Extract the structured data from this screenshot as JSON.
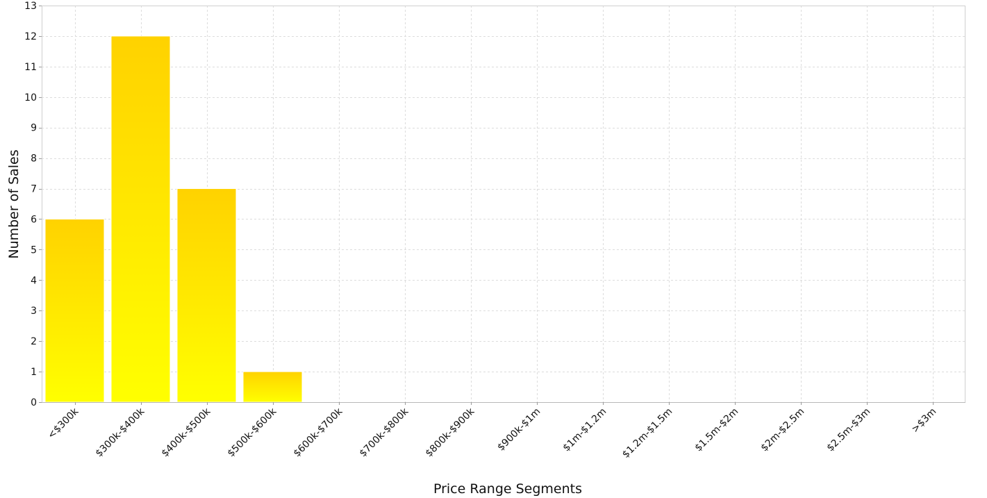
{
  "chart_data": {
    "type": "bar",
    "title": "",
    "xlabel": "Price Range Segments",
    "ylabel": "Number of Sales",
    "categories": [
      "<$300k",
      "$300k-$400k",
      "$400k-$500k",
      "$500k-$600k",
      "$600k-$700k",
      "$700k-$800k",
      "$800k-$900k",
      "$900k-$1m",
      "$1m-$1.2m",
      "$1.2m-$1.5m",
      "$1.5m-$2m",
      "$2m-$2.5m",
      "$2.5m-$3m",
      ">$3m"
    ],
    "values": [
      6,
      12,
      7,
      1,
      0,
      0,
      0,
      0,
      0,
      0,
      0,
      0,
      0,
      0
    ],
    "ylim": [
      0,
      13
    ],
    "yticks": [
      0,
      1,
      2,
      3,
      4,
      5,
      6,
      7,
      8,
      9,
      10,
      11,
      12,
      13
    ],
    "grid": true,
    "legend": "none",
    "colors": {
      "bar_top": "#ffd200",
      "bar_bottom": "#ffff00"
    }
  }
}
